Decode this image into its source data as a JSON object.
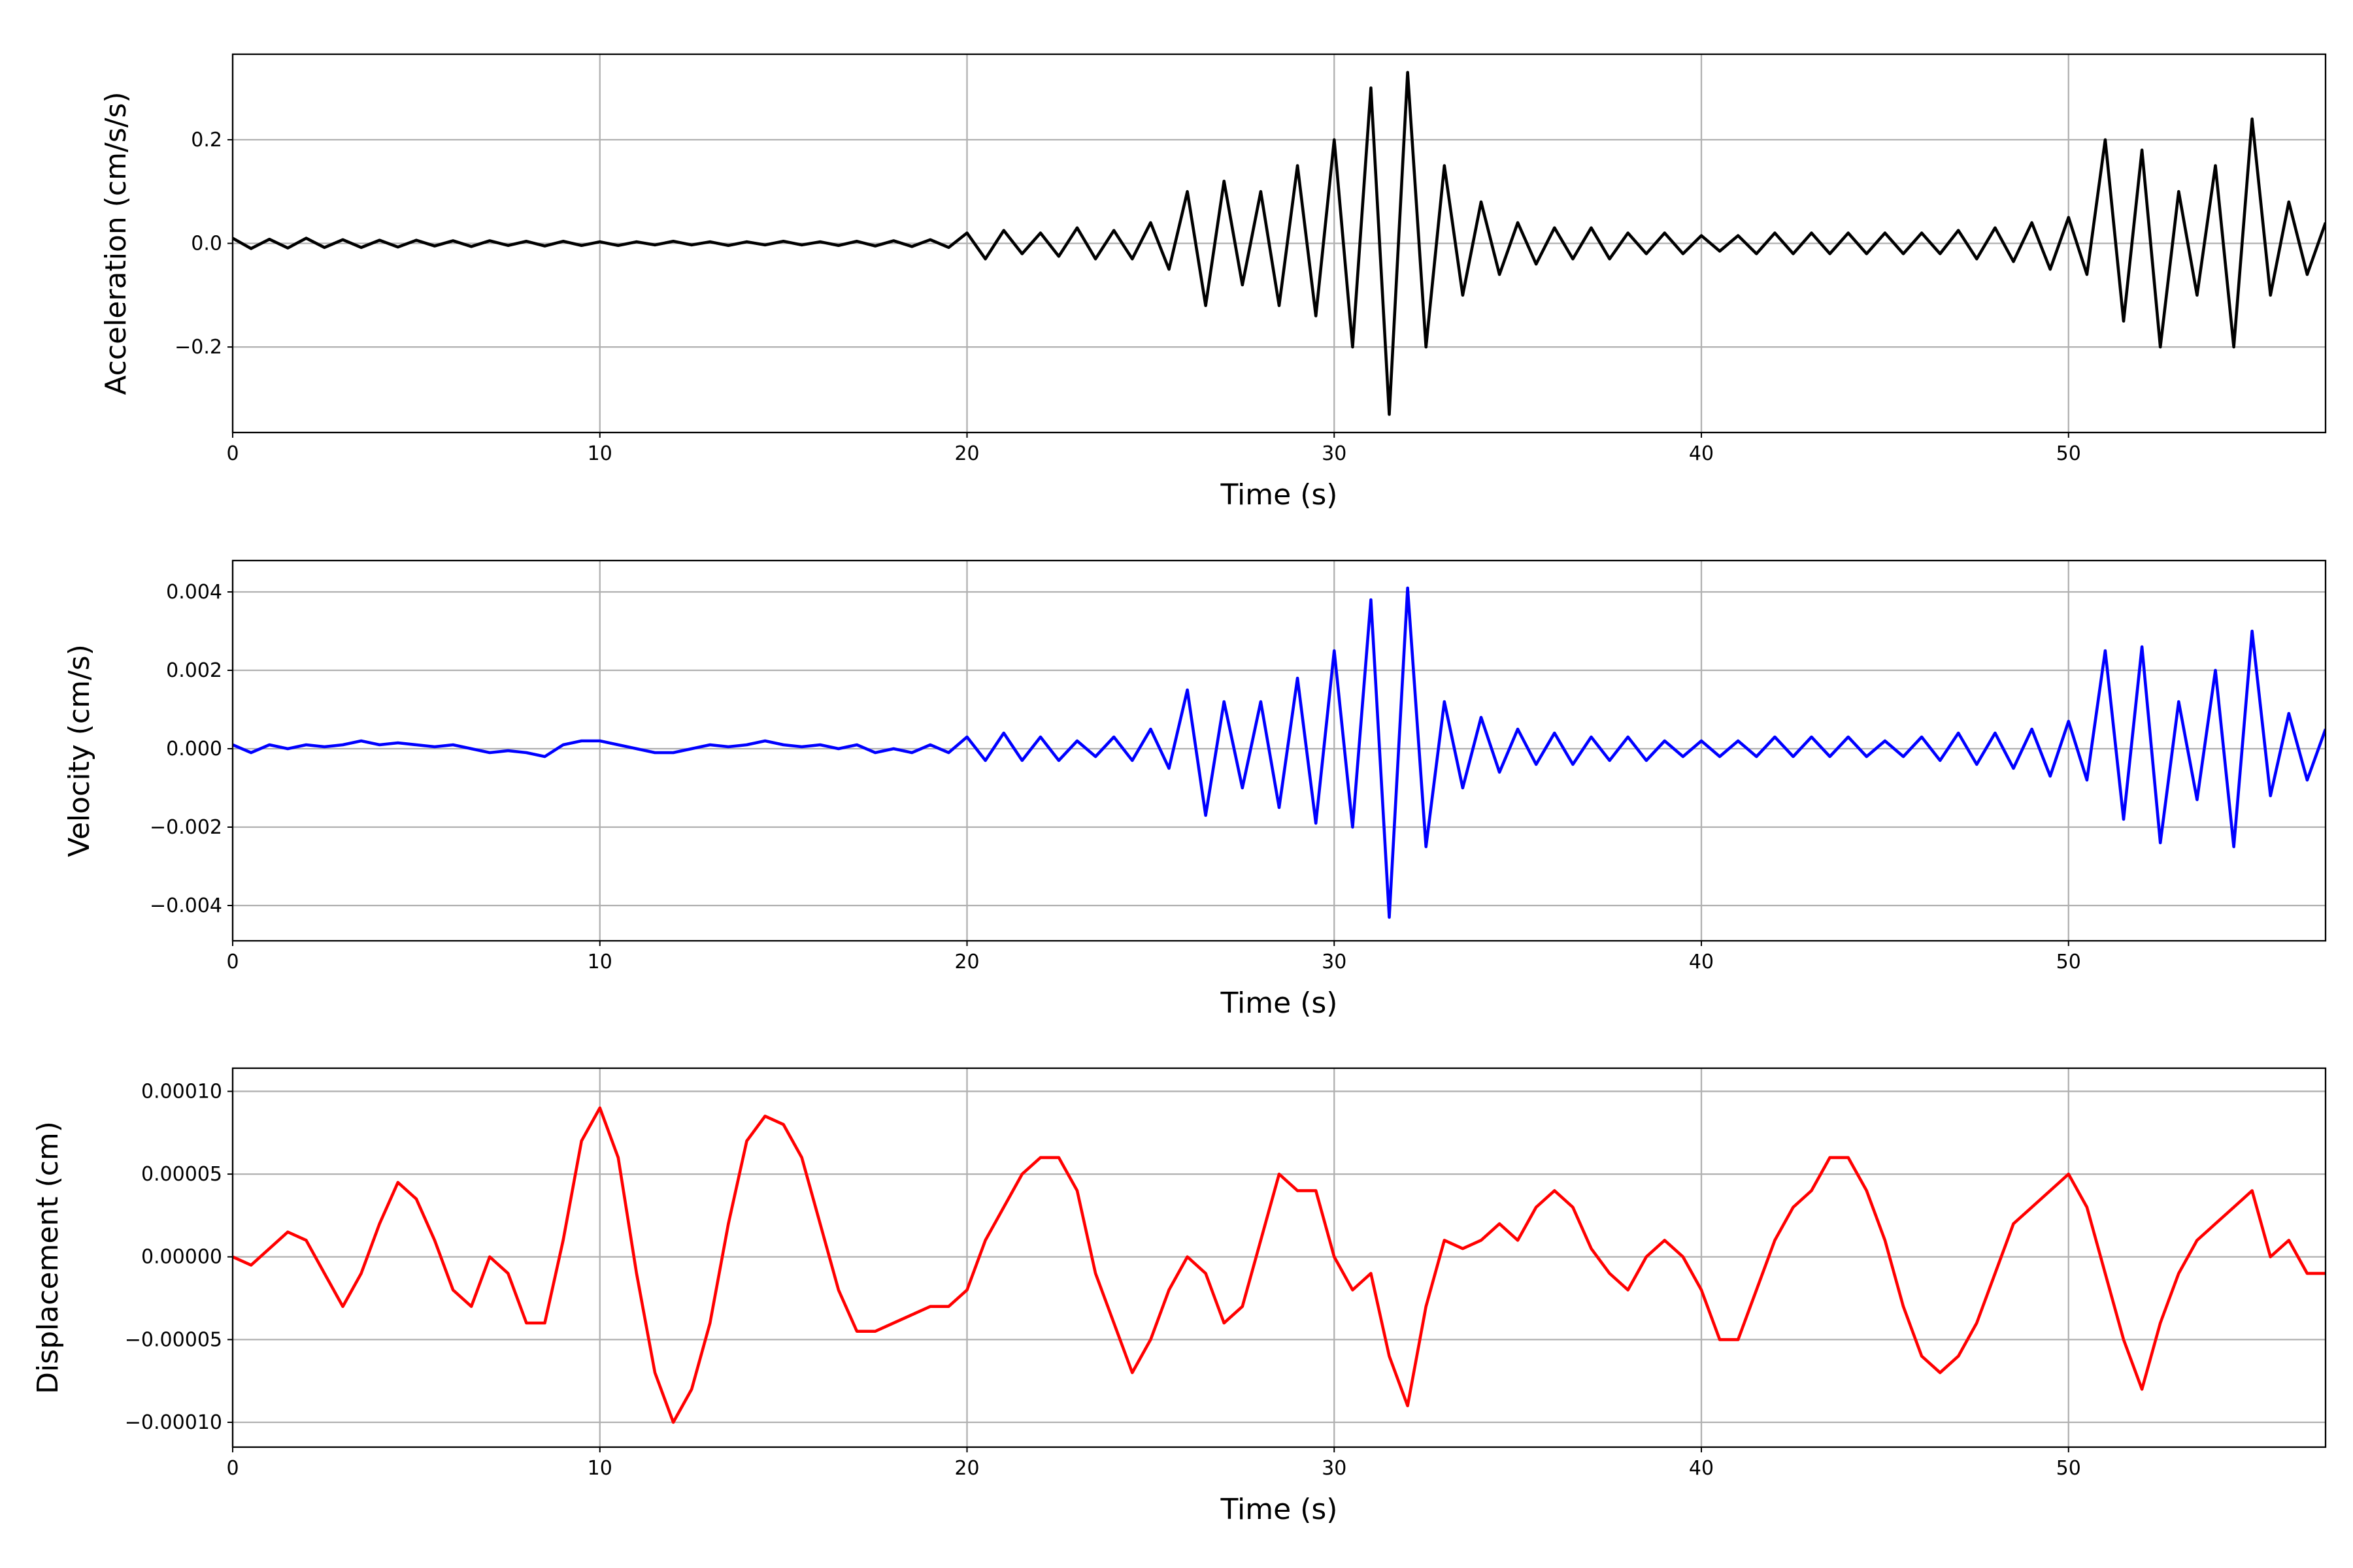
{
  "chart_data": [
    {
      "type": "line",
      "xlabel": "Time (s)",
      "ylabel": "Acceleration (cm/s/s)",
      "color": "#000000",
      "grid": true,
      "xlim": [
        0,
        57
      ],
      "xticks": [
        0,
        10,
        20,
        30,
        40,
        50
      ],
      "ylim": [
        -0.365,
        0.365
      ],
      "yticks": [
        {
          "value": -0.2,
          "label": "−0.2"
        },
        {
          "value": 0,
          "label": "0.0"
        },
        0.2
      ],
      "x": [
        0,
        0.5,
        1,
        1.5,
        2,
        2.5,
        3,
        3.5,
        4,
        4.5,
        5,
        5.5,
        6,
        6.5,
        7,
        7.5,
        8,
        8.5,
        9,
        9.5,
        10,
        10.5,
        11,
        11.5,
        12,
        12.5,
        13,
        13.5,
        14,
        14.5,
        15,
        15.5,
        16,
        16.5,
        17,
        17.5,
        18,
        18.5,
        19,
        19.5,
        20,
        20.5,
        21,
        21.5,
        22,
        22.5,
        23,
        23.5,
        24,
        24.5,
        25,
        25.5,
        26,
        26.5,
        27,
        27.5,
        28,
        28.5,
        29,
        29.5,
        30,
        30.5,
        31,
        31.5,
        32,
        32.5,
        33,
        33.5,
        34,
        34.5,
        35,
        35.5,
        36,
        36.5,
        37,
        37.5,
        38,
        38.5,
        39,
        39.5,
        40,
        40.5,
        41,
        41.5,
        42,
        42.5,
        43,
        43.5,
        44,
        44.5,
        45,
        45.5,
        46,
        46.5,
        47,
        47.5,
        48,
        48.5,
        49,
        49.5,
        50,
        50.5,
        51,
        51.5,
        52,
        52.5,
        53,
        53.5,
        54,
        54.5,
        55,
        55.5,
        56,
        56.5,
        57
      ],
      "values": [
        0.01,
        -0.01,
        0.008,
        -0.009,
        0.01,
        -0.008,
        0.007,
        -0.008,
        0.006,
        -0.007,
        0.006,
        -0.005,
        0.005,
        -0.006,
        0.005,
        -0.004,
        0.004,
        -0.005,
        0.004,
        -0.004,
        0.003,
        -0.004,
        0.003,
        -0.003,
        0.004,
        -0.003,
        0.003,
        -0.004,
        0.003,
        -0.003,
        0.004,
        -0.003,
        0.003,
        -0.004,
        0.004,
        -0.005,
        0.005,
        -0.006,
        0.007,
        -0.008,
        0.02,
        -0.03,
        0.025,
        -0.02,
        0.02,
        -0.025,
        0.03,
        -0.03,
        0.025,
        -0.03,
        0.04,
        -0.05,
        0.1,
        -0.12,
        0.12,
        -0.08,
        0.1,
        -0.12,
        0.15,
        -0.14,
        0.2,
        -0.2,
        0.3,
        -0.33,
        0.33,
        -0.2,
        0.15,
        -0.1,
        0.08,
        -0.06,
        0.04,
        -0.04,
        0.03,
        -0.03,
        0.03,
        -0.03,
        0.02,
        -0.02,
        0.02,
        -0.02,
        0.015,
        -0.015,
        0.015,
        -0.02,
        0.02,
        -0.02,
        0.02,
        -0.02,
        0.02,
        -0.02,
        0.02,
        -0.02,
        0.02,
        -0.02,
        0.025,
        -0.03,
        0.03,
        -0.035,
        0.04,
        -0.05,
        0.05,
        -0.06,
        0.2,
        -0.15,
        0.18,
        -0.2,
        0.1,
        -0.1,
        0.15,
        -0.2,
        0.24,
        -0.1,
        0.08,
        -0.06,
        0.04
      ]
    },
    {
      "type": "line",
      "xlabel": "Time (s)",
      "ylabel": "Velocity (cm/s)",
      "color": "#0000ff",
      "grid": true,
      "xlim": [
        0,
        57
      ],
      "xticks": [
        0,
        10,
        20,
        30,
        40,
        50
      ],
      "ylim": [
        -0.0049,
        0.0048
      ],
      "yticks": [
        {
          "value": -0.004,
          "label": "−0.004"
        },
        {
          "value": -0.002,
          "label": "−0.002"
        },
        {
          "value": 0,
          "label": "0.000"
        },
        0.002,
        0.004
      ],
      "x": [
        0,
        0.5,
        1,
        1.5,
        2,
        2.5,
        3,
        3.5,
        4,
        4.5,
        5,
        5.5,
        6,
        6.5,
        7,
        7.5,
        8,
        8.5,
        9,
        9.5,
        10,
        10.5,
        11,
        11.5,
        12,
        12.5,
        13,
        13.5,
        14,
        14.5,
        15,
        15.5,
        16,
        16.5,
        17,
        17.5,
        18,
        18.5,
        19,
        19.5,
        20,
        20.5,
        21,
        21.5,
        22,
        22.5,
        23,
        23.5,
        24,
        24.5,
        25,
        25.5,
        26,
        26.5,
        27,
        27.5,
        28,
        28.5,
        29,
        29.5,
        30,
        30.5,
        31,
        31.5,
        32,
        32.5,
        33,
        33.5,
        34,
        34.5,
        35,
        35.5,
        36,
        36.5,
        37,
        37.5,
        38,
        38.5,
        39,
        39.5,
        40,
        40.5,
        41,
        41.5,
        42,
        42.5,
        43,
        43.5,
        44,
        44.5,
        45,
        45.5,
        46,
        46.5,
        47,
        47.5,
        48,
        48.5,
        49,
        49.5,
        50,
        50.5,
        51,
        51.5,
        52,
        52.5,
        53,
        53.5,
        54,
        54.5,
        55,
        55.5,
        56,
        56.5,
        57
      ],
      "values": [
        0.0001,
        -0.0001,
        0.0001,
        0,
        0.0001,
        5e-05,
        0.0001,
        0.0002,
        0.0001,
        0.00015,
        0.0001,
        5e-05,
        0.0001,
        0,
        -0.0001,
        -5e-05,
        -0.0001,
        -0.0002,
        0.0001,
        0.0002,
        0.0002,
        0.0001,
        0,
        -0.0001,
        -0.0001,
        0,
        0.0001,
        5e-05,
        0.0001,
        0.0002,
        0.0001,
        5e-05,
        0.0001,
        0,
        0.0001,
        -0.0001,
        0,
        -0.0001,
        0.0001,
        -0.0001,
        0.0003,
        -0.0003,
        0.0004,
        -0.0003,
        0.0003,
        -0.0003,
        0.0002,
        -0.0002,
        0.0003,
        -0.0003,
        0.0005,
        -0.0005,
        0.0015,
        -0.0017,
        0.0012,
        -0.001,
        0.0012,
        -0.0015,
        0.0018,
        -0.0019,
        0.0025,
        -0.002,
        0.0038,
        -0.0043,
        0.0041,
        -0.0025,
        0.0012,
        -0.001,
        0.0008,
        -0.0006,
        0.0005,
        -0.0004,
        0.0004,
        -0.0004,
        0.0003,
        -0.0003,
        0.0003,
        -0.0003,
        0.0002,
        -0.0002,
        0.0002,
        -0.0002,
        0.0002,
        -0.0002,
        0.0003,
        -0.0002,
        0.0003,
        -0.0002,
        0.0003,
        -0.0002,
        0.0002,
        -0.0002,
        0.0003,
        -0.0003,
        0.0004,
        -0.0004,
        0.0004,
        -0.0005,
        0.0005,
        -0.0007,
        0.0007,
        -0.0008,
        0.0025,
        -0.0018,
        0.0026,
        -0.0024,
        0.0012,
        -0.0013,
        0.002,
        -0.0025,
        0.003,
        -0.0012,
        0.0009,
        -0.0008,
        0.0005
      ]
    },
    {
      "type": "line",
      "xlabel": "Time (s)",
      "ylabel": "Displacement (cm)",
      "color": "#ff0000",
      "grid": true,
      "xlim": [
        0,
        57
      ],
      "xticks": [
        0,
        10,
        20,
        30,
        40,
        50
      ],
      "ylim": [
        -0.000115,
        0.000114
      ],
      "yticks": [
        {
          "value": -0.0001,
          "label": "−0.00010"
        },
        {
          "value": -5e-05,
          "label": "−0.00005"
        },
        {
          "value": 0,
          "label": "0.00000"
        },
        {
          "value": 5e-05,
          "label": "0.00005"
        },
        {
          "value": 0.0001,
          "label": "0.00010"
        }
      ],
      "x": [
        0,
        0.5,
        1,
        1.5,
        2,
        2.5,
        3,
        3.5,
        4,
        4.5,
        5,
        5.5,
        6,
        6.5,
        7,
        7.5,
        8,
        8.5,
        9,
        9.5,
        10,
        10.5,
        11,
        11.5,
        12,
        12.5,
        13,
        13.5,
        14,
        14.5,
        15,
        15.5,
        16,
        16.5,
        17,
        17.5,
        18,
        18.5,
        19,
        19.5,
        20,
        20.5,
        21,
        21.5,
        22,
        22.5,
        23,
        23.5,
        24,
        24.5,
        25,
        25.5,
        26,
        26.5,
        27,
        27.5,
        28,
        28.5,
        29,
        29.5,
        30,
        30.5,
        31,
        31.5,
        32,
        32.5,
        33,
        33.5,
        34,
        34.5,
        35,
        35.5,
        36,
        36.5,
        37,
        37.5,
        38,
        38.5,
        39,
        39.5,
        40,
        40.5,
        41,
        41.5,
        42,
        42.5,
        43,
        43.5,
        44,
        44.5,
        45,
        45.5,
        46,
        46.5,
        47,
        47.5,
        48,
        48.5,
        49,
        49.5,
        50,
        50.5,
        51,
        51.5,
        52,
        52.5,
        53,
        53.5,
        54,
        54.5,
        55,
        55.5,
        56,
        56.5,
        57
      ],
      "values": [
        0,
        -5e-06,
        5e-06,
        1.5e-05,
        1e-05,
        -1e-05,
        -3e-05,
        -1e-05,
        2e-05,
        4.5e-05,
        3.5e-05,
        1e-05,
        -2e-05,
        -3e-05,
        0,
        -1e-05,
        -4e-05,
        -4e-05,
        1e-05,
        7e-05,
        9e-05,
        6e-05,
        -1e-05,
        -7e-05,
        -0.0001,
        -8e-05,
        -4e-05,
        2e-05,
        7e-05,
        8.5e-05,
        8e-05,
        6e-05,
        2e-05,
        -2e-05,
        -4.5e-05,
        -4.5e-05,
        -4e-05,
        -3.5e-05,
        -3e-05,
        -3e-05,
        -2e-05,
        1e-05,
        3e-05,
        5e-05,
        6e-05,
        6e-05,
        4e-05,
        -1e-05,
        -4e-05,
        -7e-05,
        -5e-05,
        -2e-05,
        0,
        -1e-05,
        -4e-05,
        -3e-05,
        1e-05,
        5e-05,
        4e-05,
        4e-05,
        0,
        -2e-05,
        -1e-05,
        -6e-05,
        -9e-05,
        -3e-05,
        1e-05,
        5e-06,
        1e-05,
        2e-05,
        1e-05,
        3e-05,
        4e-05,
        3e-05,
        5e-06,
        -1e-05,
        -2e-05,
        0,
        1e-05,
        0,
        -2e-05,
        -5e-05,
        -5e-05,
        -2e-05,
        1e-05,
        3e-05,
        4e-05,
        6e-05,
        6e-05,
        4e-05,
        1e-05,
        -3e-05,
        -6e-05,
        -7e-05,
        -6e-05,
        -4e-05,
        -1e-05,
        2e-05,
        3e-05,
        4e-05,
        5e-05,
        3e-05,
        -1e-05,
        -5e-05,
        -8e-05,
        -4e-05,
        -1e-05,
        1e-05,
        2e-05,
        3e-05,
        4e-05,
        0,
        1e-05,
        -1e-05,
        -1e-05
      ]
    }
  ]
}
